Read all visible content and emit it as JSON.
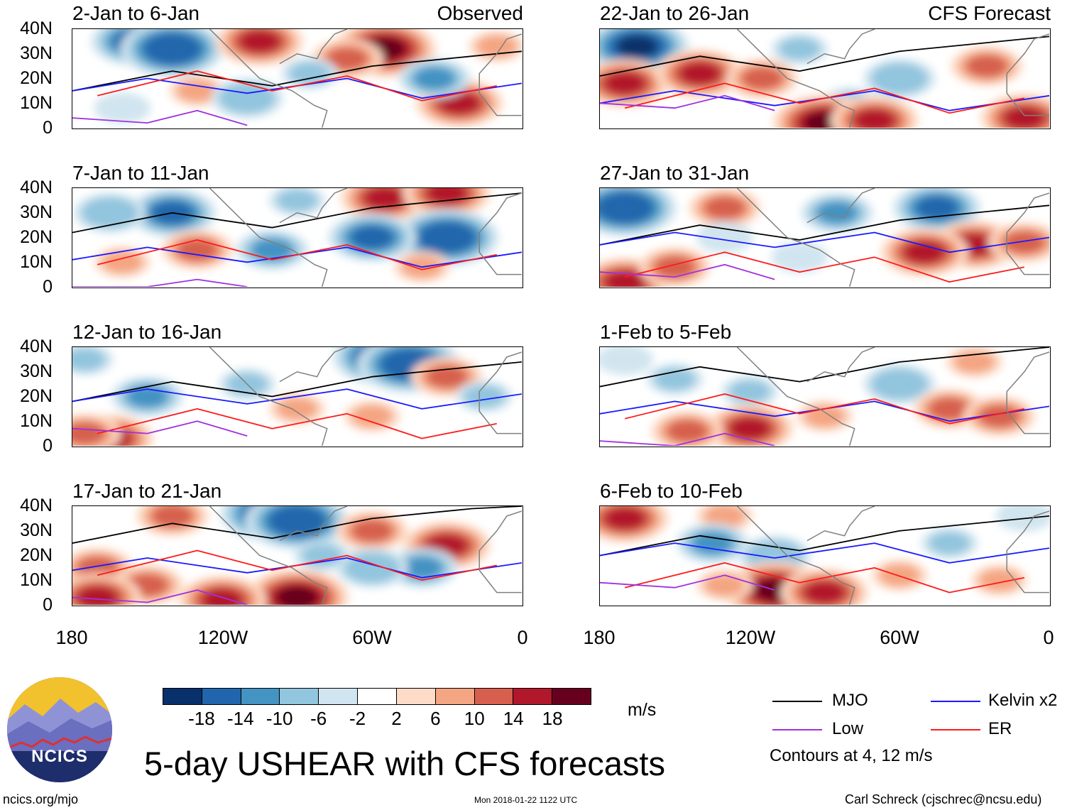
{
  "left_tag": "Observed",
  "right_tag": "CFS Forecast",
  "colors": {
    "scale": [
      "#08306b",
      "#2166ac",
      "#4393c3",
      "#92c5de",
      "#d1e5f0",
      "#ffffff",
      "#fddbc7",
      "#f4a582",
      "#d6604d",
      "#b2182b",
      "#67001f"
    ],
    "mjo": "#000000",
    "kelvin": "#1a1aff",
    "low": "#a030e0",
    "er": "#ff1a1a",
    "map": "#808080"
  },
  "chart_data": {
    "type": "heatmap",
    "title": "5-day USHEAR with CFS forecasts",
    "units": "m/s",
    "colorbar_ticks": [
      "-18",
      "-14",
      "-10",
      "-6",
      "-2",
      "2",
      "6",
      "10",
      "14",
      "18"
    ],
    "y_ticks": [
      "40N",
      "30N",
      "20N",
      "10N",
      "0"
    ],
    "x_ticks": [
      "180",
      "120W",
      "60W",
      "0"
    ],
    "lon_range": [
      -180,
      0
    ],
    "lat_range": [
      0,
      40
    ],
    "contour_note": "Contours at 4, 12 m/s",
    "legend": [
      {
        "name": "MJO",
        "color": "#000000"
      },
      {
        "name": "Kelvin x2",
        "color": "#1a1aff"
      },
      {
        "name": "Low",
        "color": "#a030e0"
      },
      {
        "name": "ER",
        "color": "#ff1a1a"
      }
    ],
    "panels": [
      {
        "id": "p1",
        "title": "2-Jan to 6-Jan",
        "source": "Observed",
        "blobs": [
          [
            -155,
            35,
            -16
          ],
          [
            -140,
            32,
            -18
          ],
          [
            -105,
            35,
            14
          ],
          [
            -55,
            32,
            18
          ],
          [
            -70,
            28,
            12
          ],
          [
            -130,
            15,
            8
          ],
          [
            -25,
            10,
            14
          ],
          [
            -35,
            20,
            -12
          ],
          [
            -110,
            12,
            -10
          ],
          [
            -85,
            22,
            -8
          ],
          [
            -10,
            33,
            6
          ],
          [
            -160,
            8,
            -6
          ]
        ]
      },
      {
        "id": "p2",
        "title": "7-Jan to 11-Jan",
        "source": "Observed",
        "blobs": [
          [
            -140,
            30,
            -16
          ],
          [
            -165,
            30,
            -10
          ],
          [
            -130,
            15,
            10
          ],
          [
            -160,
            10,
            6
          ],
          [
            -55,
            36,
            16
          ],
          [
            -30,
            38,
            14
          ],
          [
            -30,
            20,
            -18
          ],
          [
            -60,
            20,
            -16
          ],
          [
            -100,
            15,
            -12
          ],
          [
            -40,
            8,
            8
          ],
          [
            -90,
            35,
            -8
          ]
        ]
      },
      {
        "id": "p3",
        "title": "12-Jan to 16-Jan",
        "source": "Observed",
        "blobs": [
          [
            -55,
            36,
            -20
          ],
          [
            -45,
            33,
            -18
          ],
          [
            -30,
            28,
            10
          ],
          [
            -150,
            20,
            -12
          ],
          [
            -175,
            35,
            -8
          ],
          [
            -165,
            3,
            16
          ],
          [
            -175,
            5,
            12
          ],
          [
            -110,
            25,
            -8
          ],
          [
            -90,
            15,
            6
          ],
          [
            -60,
            12,
            6
          ],
          [
            -15,
            20,
            -8
          ]
        ]
      },
      {
        "id": "p4",
        "title": "17-Jan to 21-Jan",
        "source": "Observed",
        "blobs": [
          [
            -100,
            37,
            -20
          ],
          [
            -90,
            34,
            -18
          ],
          [
            -140,
            36,
            10
          ],
          [
            -60,
            30,
            12
          ],
          [
            -30,
            24,
            14
          ],
          [
            -170,
            15,
            12
          ],
          [
            -150,
            8,
            10
          ],
          [
            -90,
            3,
            18
          ],
          [
            -120,
            2,
            16
          ],
          [
            -170,
            3,
            14
          ],
          [
            -40,
            15,
            -12
          ],
          [
            -60,
            15,
            -10
          ],
          [
            -80,
            20,
            -8
          ]
        ]
      },
      {
        "id": "p5",
        "title": "22-Jan to 26-Jan",
        "source": "CFS Forecast",
        "blobs": [
          [
            -165,
            33,
            -20
          ],
          [
            -170,
            18,
            16
          ],
          [
            -140,
            22,
            14
          ],
          [
            -115,
            20,
            10
          ],
          [
            -60,
            20,
            -10
          ],
          [
            -80,
            10,
            -8
          ],
          [
            -90,
            2,
            18
          ],
          [
            -70,
            3,
            14
          ],
          [
            -25,
            25,
            12
          ],
          [
            -10,
            4,
            14
          ],
          [
            -100,
            32,
            -8
          ]
        ]
      },
      {
        "id": "p6",
        "title": "27-Jan to 31-Jan",
        "source": "CFS Forecast",
        "blobs": [
          [
            -170,
            32,
            -18
          ],
          [
            -130,
            32,
            10
          ],
          [
            -85,
            30,
            -12
          ],
          [
            -45,
            32,
            -16
          ],
          [
            -30,
            17,
            16
          ],
          [
            -50,
            14,
            14
          ],
          [
            -10,
            18,
            10
          ],
          [
            -170,
            2,
            16
          ],
          [
            -150,
            8,
            10
          ],
          [
            -100,
            12,
            -6
          ],
          [
            -130,
            20,
            -6
          ]
        ]
      },
      {
        "id": "p7",
        "title": "1-Feb to 5-Feb",
        "source": "CFS Forecast",
        "blobs": [
          [
            -150,
            27,
            -8
          ],
          [
            -120,
            22,
            -8
          ],
          [
            -60,
            25,
            -10
          ],
          [
            -120,
            7,
            16
          ],
          [
            -145,
            6,
            12
          ],
          [
            -40,
            15,
            12
          ],
          [
            -20,
            12,
            10
          ],
          [
            -30,
            34,
            6
          ],
          [
            -170,
            35,
            -6
          ],
          [
            -90,
            12,
            6
          ]
        ]
      },
      {
        "id": "p8",
        "title": "6-Feb to 10-Feb",
        "source": "CFS Forecast",
        "blobs": [
          [
            -170,
            35,
            14
          ],
          [
            -130,
            36,
            6
          ],
          [
            -135,
            25,
            -12
          ],
          [
            -110,
            20,
            -10
          ],
          [
            -110,
            6,
            20
          ],
          [
            -90,
            5,
            14
          ],
          [
            -130,
            8,
            8
          ],
          [
            -60,
            12,
            8
          ],
          [
            -40,
            25,
            -8
          ],
          [
            -20,
            10,
            8
          ],
          [
            -10,
            36,
            -6
          ]
        ]
      }
    ]
  },
  "units_label": "m/s",
  "contour_note": "Contours at 4, 12 m/s",
  "logo_text": "NCICS",
  "footer": {
    "url": "ncics.org/mjo",
    "timestamp": "Mon 2018-01-22 1122 UTC",
    "credit": "Carl Schreck (cjschrec@ncsu.edu)"
  }
}
